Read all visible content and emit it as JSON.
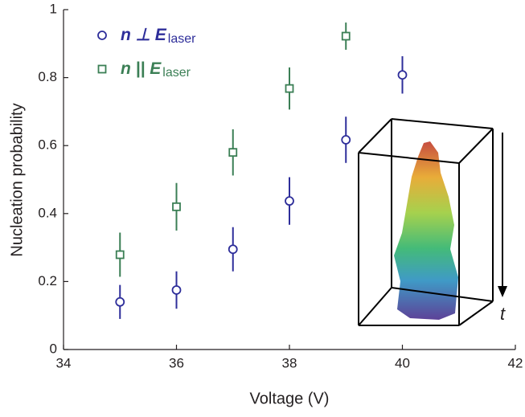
{
  "chart_data": {
    "type": "scatter",
    "x_label": "Voltage (V)",
    "y_label": "Nucleation probability",
    "xlim": [
      34,
      42
    ],
    "xticks": [
      34,
      36,
      38,
      40,
      42
    ],
    "ylim": [
      0,
      1
    ],
    "yticks": [
      0,
      0.2,
      0.4,
      0.6,
      0.8,
      1
    ],
    "series": [
      {
        "name": "n ⊥ E",
        "name_subscript": "laser",
        "color": "#2e2e9a",
        "marker": "circle",
        "x": [
          35,
          36,
          37,
          38,
          39,
          40
        ],
        "values": [
          0.14,
          0.175,
          0.295,
          0.437,
          0.617,
          0.808
        ],
        "errors": [
          0.05,
          0.055,
          0.065,
          0.07,
          0.068,
          0.055
        ]
      },
      {
        "name": "n || E",
        "name_subscript": "laser",
        "color": "#3b7f55",
        "marker": "square",
        "x": [
          35,
          36,
          37,
          38,
          39
        ],
        "values": [
          0.279,
          0.42,
          0.58,
          0.768,
          0.922
        ],
        "errors": [
          0.065,
          0.07,
          0.068,
          0.062,
          0.04
        ]
      }
    ],
    "inset_label": "t"
  }
}
